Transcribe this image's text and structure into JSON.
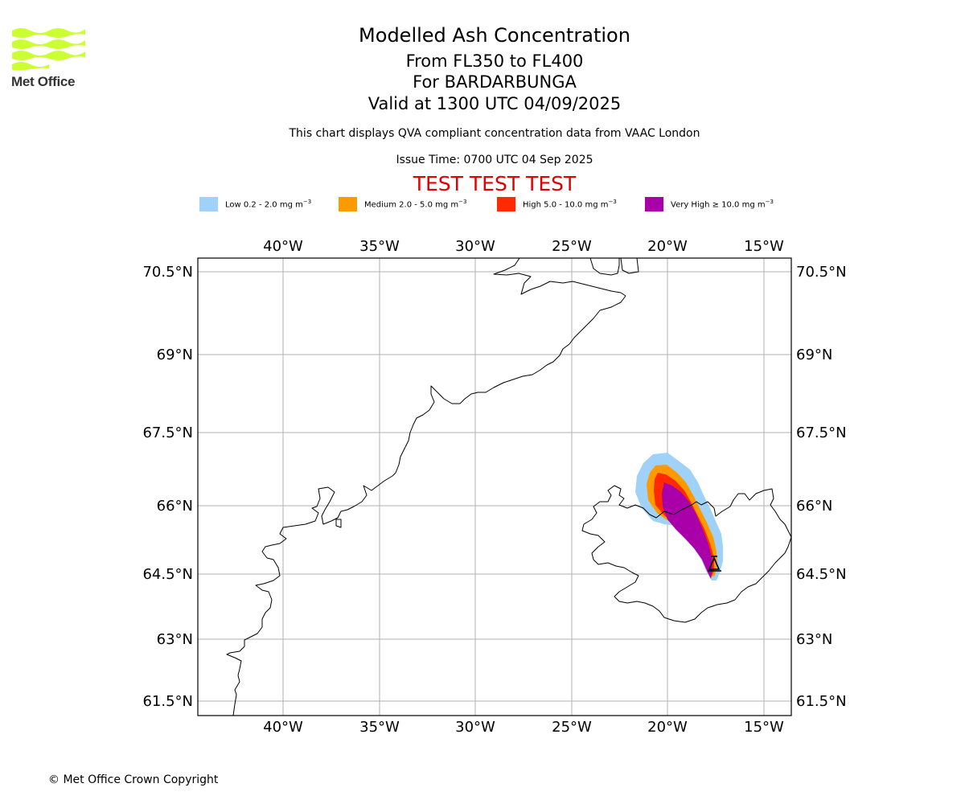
{
  "logo": {
    "text": "Met Office",
    "wave_color": "#ccff33"
  },
  "header": {
    "title": "Modelled Ash Concentration",
    "levels": "From FL350 to FL400",
    "volcano": "For BARDARBUNGA",
    "valid": "Valid at 1300 UTC 04/09/2025",
    "description": "This chart displays QVA compliant concentration data from VAAC London",
    "issue_time": "Issue Time: 0700 UTC 04 Sep 2025",
    "test_banner": "TEST TEST TEST"
  },
  "legend": [
    {
      "label": "Low 0.2 - 2.0 mg m",
      "color": "#a0d2f8"
    },
    {
      "label": "Medium 2.0 - 5.0 mg m",
      "color": "#ff9900"
    },
    {
      "label": "High 5.0 - 10.0 mg m",
      "color": "#ff2a00"
    },
    {
      "label": "Very High ≥ 10.0 mg m",
      "color": "#aa00aa"
    }
  ],
  "legend_unit_exp": "−3",
  "map": {
    "lon_ticks": [
      "40°W",
      "35°W",
      "30°W",
      "25°W",
      "20°W",
      "15°W"
    ],
    "lat_ticks": [
      "70.5°N",
      "69°N",
      "67.5°N",
      "66°N",
      "64.5°N",
      "63°N",
      "61.5°N"
    ],
    "coast_color": "#000000",
    "grid_color": "#b0b0b0"
  },
  "footer": {
    "copyright": "© Met Office Crown Copyright"
  }
}
